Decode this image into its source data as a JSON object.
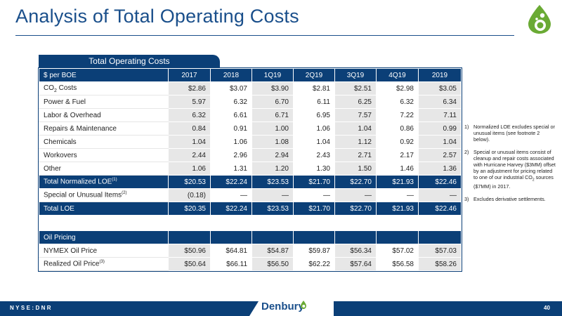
{
  "title": "Analysis of Total Operating Costs",
  "colors": {
    "navy": "#0b3f77",
    "title_blue": "#1a4f8b",
    "logo_green": "#6aaa34"
  },
  "table": {
    "tab_label": "Total Operating Costs",
    "header": [
      "$ per BOE",
      "2017",
      "2018",
      "1Q19",
      "2Q19",
      "3Q19",
      "4Q19",
      "2019"
    ],
    "rows": [
      {
        "label": "CO",
        "sub": "2",
        "label_rest": " Costs",
        "values": [
          "$2.86",
          "$3.07",
          "$3.90",
          "$2.81",
          "$2.51",
          "$2.98",
          "$3.05"
        ]
      },
      {
        "label": "Power & Fuel",
        "values": [
          "5.97",
          "6.32",
          "6.70",
          "6.11",
          "6.25",
          "6.32",
          "6.34"
        ]
      },
      {
        "label": "Labor & Overhead",
        "values": [
          "6.32",
          "6.61",
          "6.71",
          "6.95",
          "7.57",
          "7.22",
          "7.11"
        ]
      },
      {
        "label": "Repairs & Maintenance",
        "values": [
          "0.84",
          "0.91",
          "1.00",
          "1.06",
          "1.04",
          "0.86",
          "0.99"
        ]
      },
      {
        "label": "Chemicals",
        "values": [
          "1.04",
          "1.06",
          "1.08",
          "1.04",
          "1.12",
          "0.92",
          "1.04"
        ]
      },
      {
        "label": "Workovers",
        "values": [
          "2.44",
          "2.96",
          "2.94",
          "2.43",
          "2.71",
          "2.17",
          "2.57"
        ]
      },
      {
        "label": "Other",
        "values": [
          "1.06",
          "1.31",
          "1.20",
          "1.30",
          "1.50",
          "1.46",
          "1.36"
        ]
      }
    ],
    "total_normalized": {
      "label": "Total Normalized LOE",
      "sup": "(1)",
      "values": [
        "$20.53",
        "$22.24",
        "$23.53",
        "$21.70",
        "$22.70",
        "$21.93",
        "$22.46"
      ]
    },
    "special": {
      "label": "Special or Unusual Items",
      "sup": "(2)",
      "values": [
        "(0.18)",
        "—",
        "—",
        "—",
        "—",
        "—",
        "—"
      ]
    },
    "total_loe": {
      "label": "Total LOE",
      "values": [
        "$20.35",
        "$22.24",
        "$23.53",
        "$21.70",
        "$22.70",
        "$21.93",
        "$22.46"
      ]
    },
    "oil_section": {
      "label": "Oil Pricing"
    },
    "nymex": {
      "label": "NYMEX Oil Price",
      "values": [
        "$50.96",
        "$64.81",
        "$54.87",
        "$59.87",
        "$56.34",
        "$57.02",
        "$57.03"
      ]
    },
    "realized": {
      "label": "Realized Oil Price",
      "sup": "(3)",
      "values": [
        "$50.64",
        "$66.11",
        "$56.50",
        "$62.22",
        "$57.64",
        "$56.58",
        "$58.26"
      ]
    }
  },
  "notes": [
    {
      "num": "1)",
      "text": "Normalized LOE excludes special or unusual items (see footnote 2 below)."
    },
    {
      "num": "2)",
      "text_a": "Special or unusual items consist of cleanup and repair costs associated with Hurricane Harvey ($3MM) offset by an adjustment for pricing related to one of our industrial CO",
      "sub": "2",
      "text_b": " sources ($7MM) in 2017."
    },
    {
      "num": "3)",
      "text": "Excludes derivative settlements."
    }
  ],
  "footer": {
    "ticker": "NYSE:DNR",
    "brand": "Denbury",
    "page": "40"
  }
}
